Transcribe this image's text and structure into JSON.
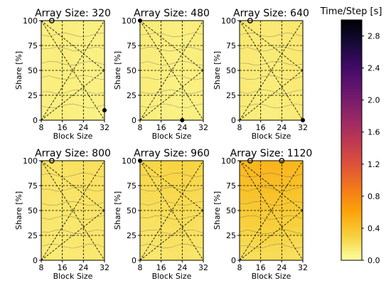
{
  "chart_data": {
    "type": "heatmap",
    "layout": "2x3 small multiples with shared colorbar",
    "xlabel": "Block Size",
    "ylabel": "Share [%]",
    "xticks": [
      8,
      16,
      24,
      32
    ],
    "yticks": [
      0,
      25,
      50,
      75,
      100
    ],
    "xlim": [
      8,
      32
    ],
    "ylim": [
      0,
      100
    ],
    "colorbar": {
      "title": "Time/Step [s]",
      "min": 0.0,
      "max": 3.0,
      "ticks": [
        "0.0",
        "0.4",
        "0.8",
        "1.2",
        "1.6",
        "2.0",
        "2.4",
        "2.8"
      ],
      "tick_values": [
        0.0,
        0.4,
        0.8,
        1.2,
        1.6,
        2.0,
        2.4,
        2.8
      ],
      "colormap": "inferno_r"
    },
    "panels": [
      {
        "title": "Array Size: 320",
        "base": 0.1,
        "gradient": 0.01,
        "markers": [
          {
            "x": 12,
            "y": 100,
            "style": "open"
          },
          {
            "x": 32,
            "y": 10,
            "style": "filled"
          }
        ]
      },
      {
        "title": "Array Size: 480",
        "base": 0.1,
        "gradient": 0.02,
        "markers": [
          {
            "x": 8,
            "y": 100,
            "style": "filled"
          },
          {
            "x": 24,
            "y": 0,
            "style": "filled"
          }
        ]
      },
      {
        "title": "Array Size: 640",
        "base": 0.12,
        "gradient": 0.03,
        "markers": [
          {
            "x": 12,
            "y": 100,
            "style": "open"
          },
          {
            "x": 32,
            "y": 0,
            "style": "filled"
          }
        ]
      },
      {
        "title": "Array Size: 800",
        "base": 0.14,
        "gradient": 0.06,
        "markers": [
          {
            "x": 12,
            "y": 100,
            "style": "open"
          }
        ]
      },
      {
        "title": "Array Size: 960",
        "base": 0.16,
        "gradient": 0.12,
        "markers": [
          {
            "x": 8,
            "y": 100,
            "style": "filled"
          }
        ]
      },
      {
        "title": "Array Size: 1120",
        "base": 0.2,
        "gradient": 0.3,
        "markers": [
          {
            "x": 12,
            "y": 100,
            "style": "open"
          },
          {
            "x": 24,
            "y": 100,
            "style": "open"
          }
        ]
      }
    ]
  }
}
